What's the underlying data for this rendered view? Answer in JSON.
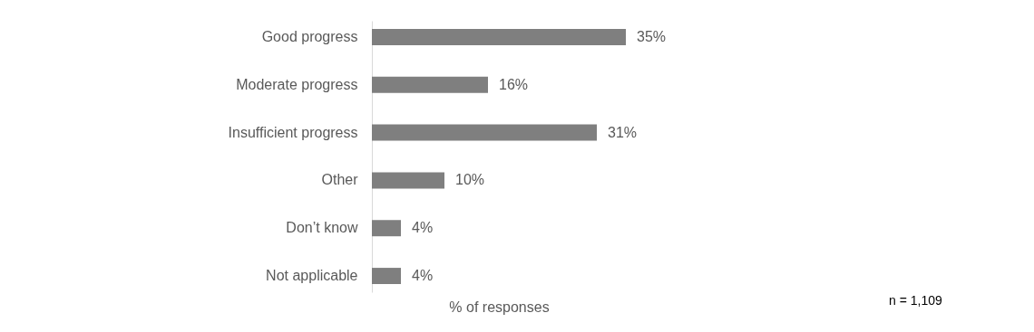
{
  "chart_data": {
    "type": "bar",
    "orientation": "horizontal",
    "xlabel": "% of responses",
    "categories": [
      "Good progress",
      "Moderate progress",
      "Insufficient progress",
      "Other",
      "Don’t know",
      "Not applicable"
    ],
    "values": [
      35,
      16,
      31,
      10,
      4,
      4
    ],
    "value_labels": [
      "35%",
      "16%",
      "31%",
      "10%",
      "4%",
      "4%"
    ],
    "color": "#7f7f7f",
    "annotations": [
      "n = 1,109"
    ]
  }
}
